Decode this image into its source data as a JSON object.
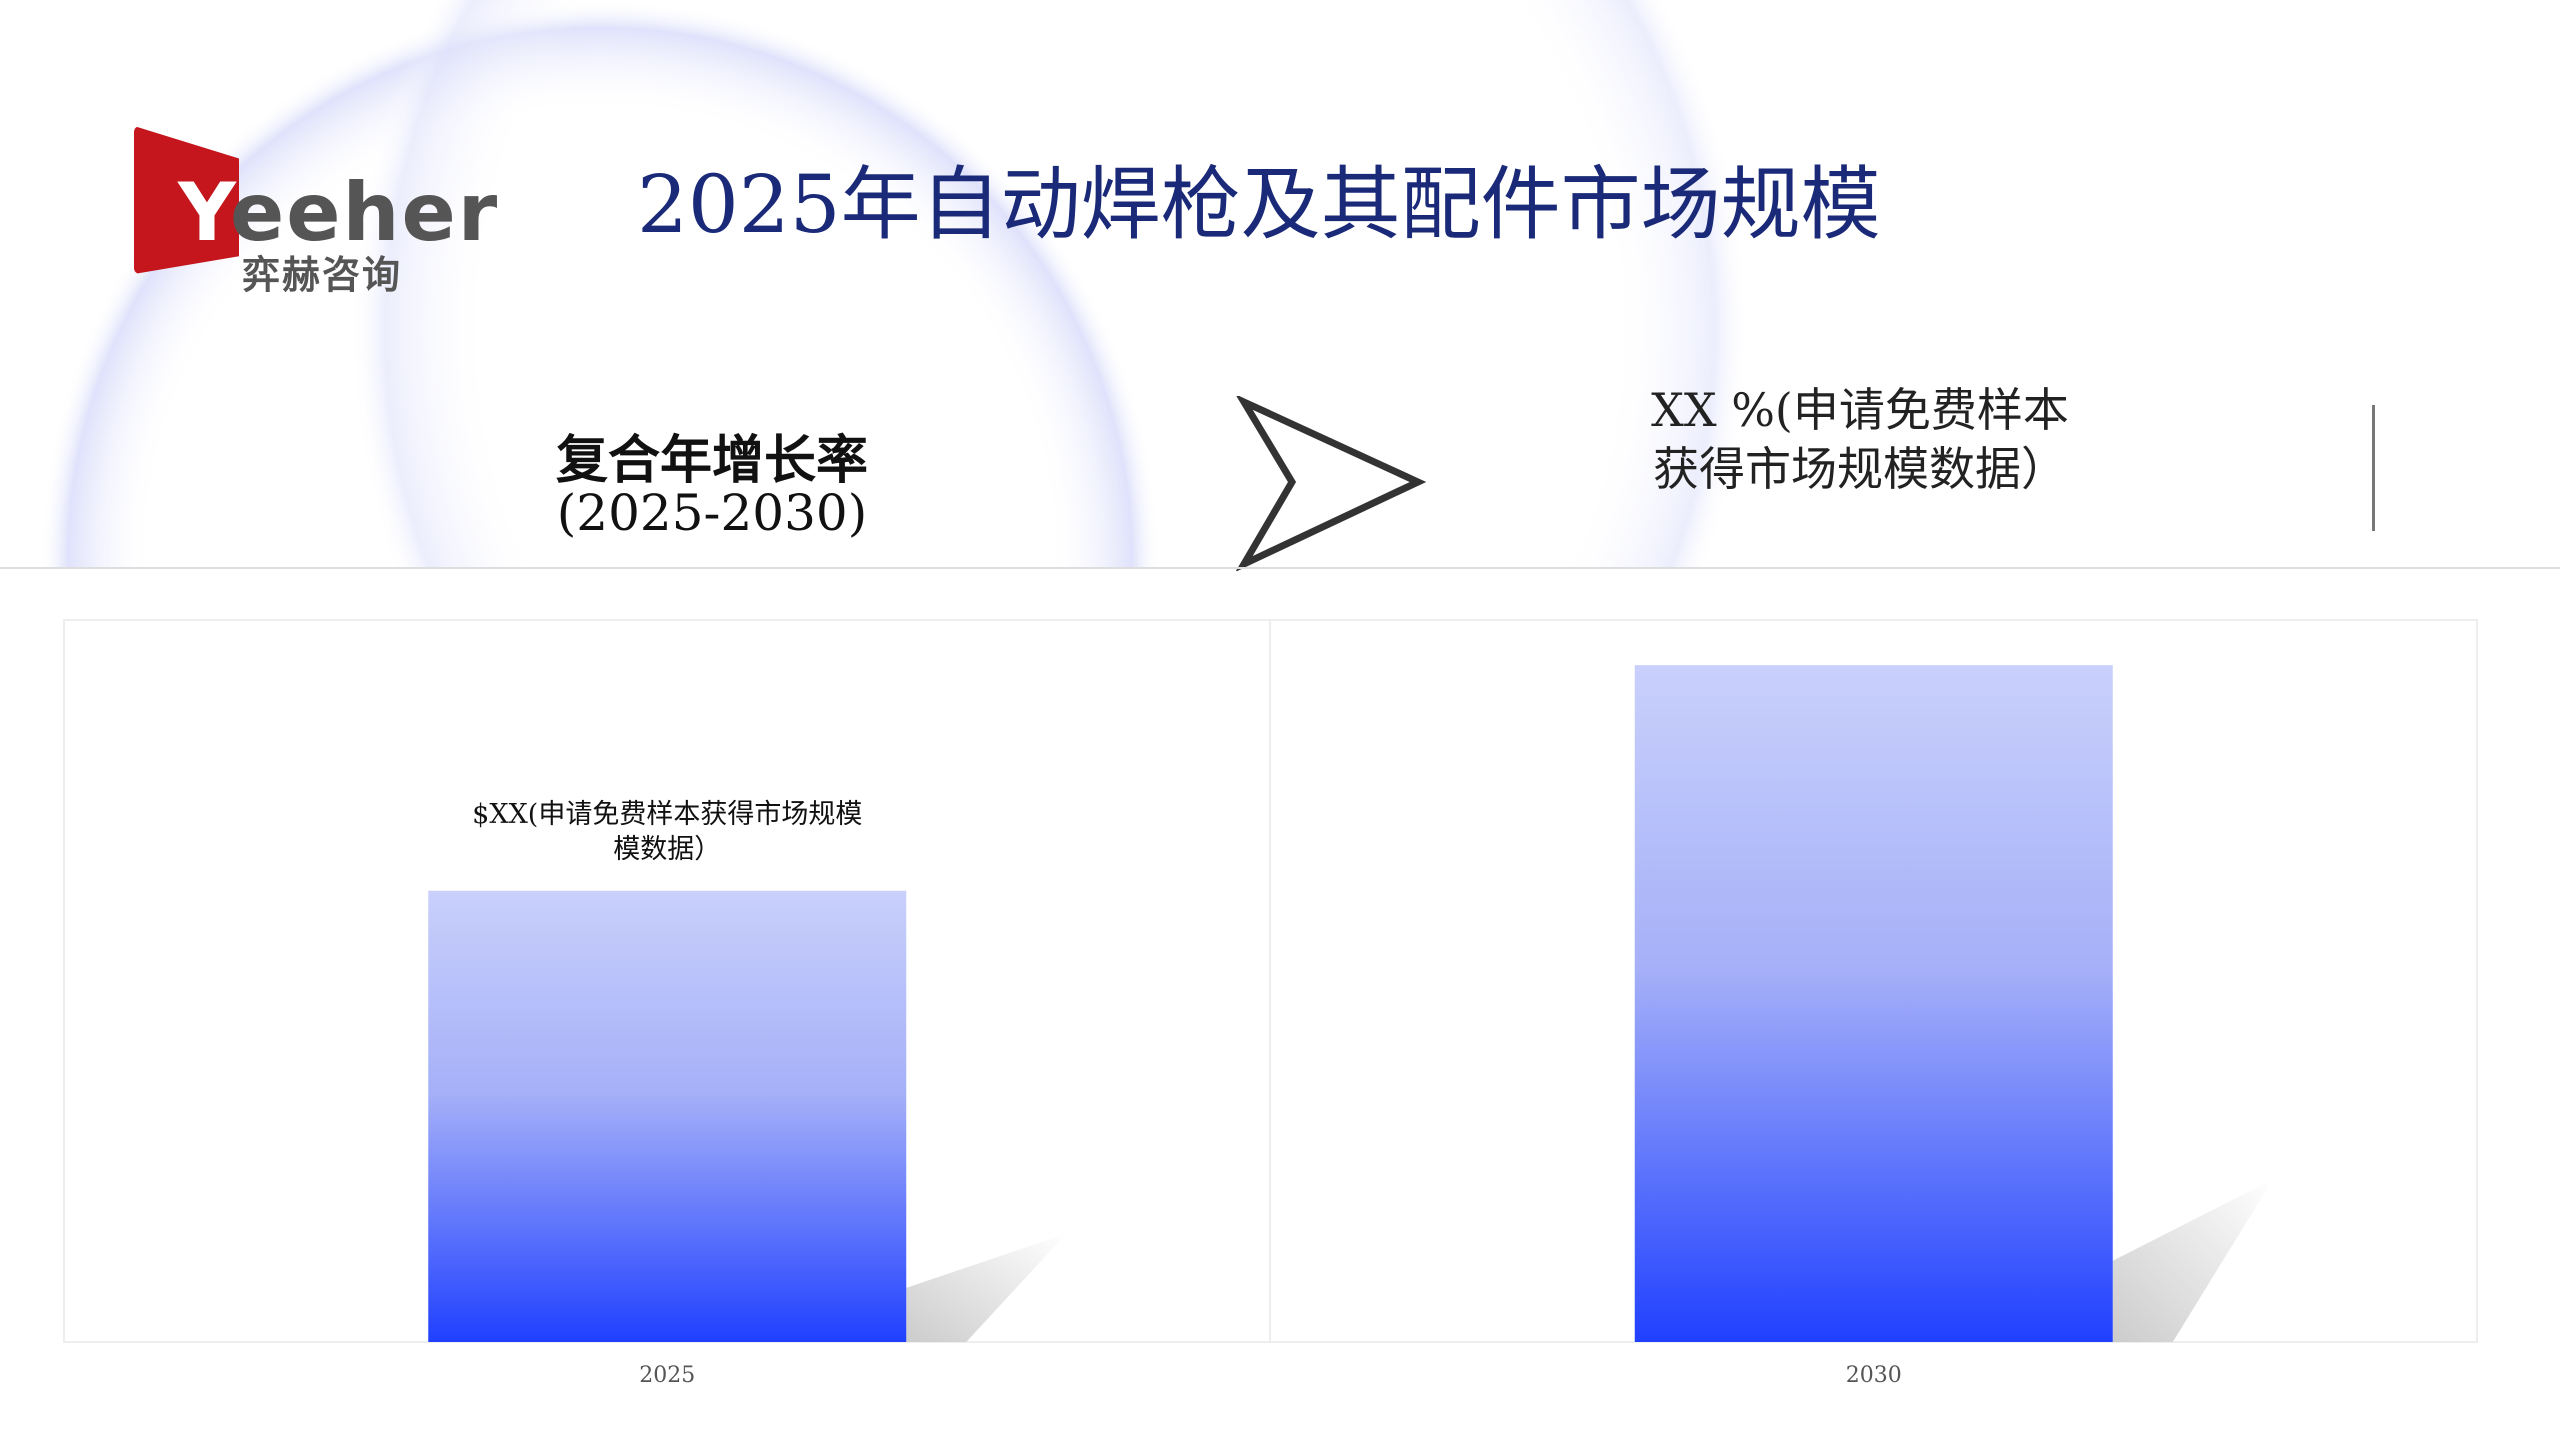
{
  "logo": {
    "text_latin": "Yeeher",
    "text_cn": "弈赫咨询",
    "brand_color": "#c4161c"
  },
  "title": "2025年自动焊枪及其配件市场规模",
  "cagr": {
    "label": "复合年增长率",
    "years": "(2025-2030)",
    "value_line1": "XX %(申请免费样本",
    "value_line2": "获得市场规模数据）"
  },
  "arrow_icon": "chevron-right-outline",
  "chart_data": {
    "type": "bar",
    "categories": [
      "2025",
      "2030"
    ],
    "values": [
      100,
      150
    ],
    "data_labels": [
      "$XX(申请免费样本获得市场规模数据）",
      ""
    ],
    "data_label_lines": [
      "$XX(申请免费样本获得市场规模",
      "模数据）"
    ],
    "ylim": [
      0,
      160
    ],
    "grid": false,
    "bar_gradient": [
      "#c9d0fb",
      "#2040ff"
    ]
  }
}
